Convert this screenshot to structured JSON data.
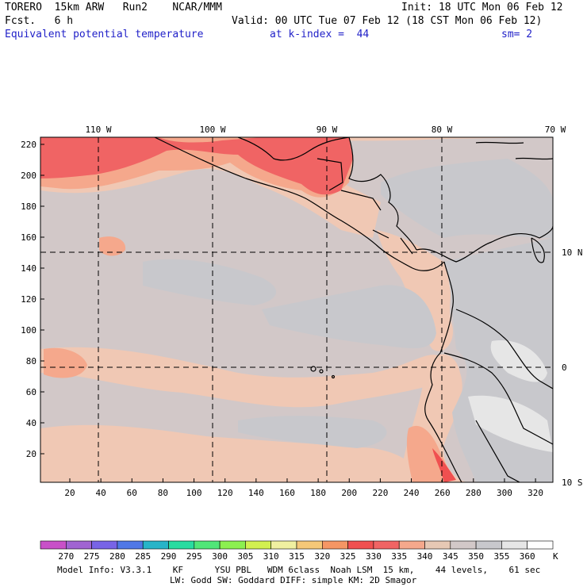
{
  "header": {
    "line1_left": "TORERO  15km ARW   Run2    NCAR/MMM",
    "line1_right": "Init: 18 UTC Mon 06 Feb 12",
    "line2_left": "Fcst.   6 h",
    "line2_right": "Valid: 00 UTC Tue 07 Feb 12 (18 CST Mon 06 Feb 12)",
    "line3_field": "Equivalent potential temperature",
    "line3_level": "at k-index =  44",
    "line3_smooth": "sm= 2"
  },
  "map": {
    "top_lon_labels": [
      "110 W",
      "100 W",
      "90 W",
      "80 W",
      "70 W"
    ],
    "right_lat_labels": [
      "10 N",
      "0",
      "10 S"
    ],
    "left_y_ticks": [
      "220",
      "200",
      "180",
      "160",
      "140",
      "120",
      "100",
      "80",
      "60",
      "40",
      "20"
    ],
    "bottom_x_ticks": [
      "20",
      "40",
      "60",
      "80",
      "100",
      "120",
      "140",
      "160",
      "180",
      "200",
      "220",
      "240",
      "260",
      "280",
      "300",
      "320"
    ]
  },
  "colorbar": {
    "unit": "K",
    "labels": [
      "270",
      "275",
      "280",
      "285",
      "290",
      "295",
      "300",
      "305",
      "310",
      "315",
      "320",
      "325",
      "330",
      "335",
      "340",
      "345",
      "350",
      "355",
      "360"
    ],
    "colors": [
      "#c850c8",
      "#a064d2",
      "#7864e6",
      "#5078e6",
      "#28b4c8",
      "#28dca0",
      "#50e678",
      "#8cf050",
      "#d2f050",
      "#f0f0a0",
      "#f5c878",
      "#f59664",
      "#f05050",
      "#f06464",
      "#f5a88c",
      "#e6c8b4",
      "#d2c8c8",
      "#c8c8cc",
      "#e6e6e6",
      "#ffffff"
    ]
  },
  "footer": {
    "line1": "Model Info: V3.3.1    KF      YSU PBL   WDM 6class  Noah LSM  15 km,    44 levels,    61 sec",
    "line2": "LW: Godd SW: Goddard DIFF: simple KM: 2D Smagor"
  }
}
